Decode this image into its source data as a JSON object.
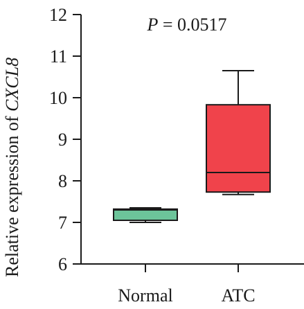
{
  "chart_data": {
    "type": "box",
    "title": "",
    "xlabel": "",
    "ylabel": {
      "prefix": "Relative expression of ",
      "gene": "CXCL8"
    },
    "ylim": [
      6,
      12
    ],
    "yticks": [
      "6",
      "7",
      "8",
      "9",
      "10",
      "11",
      "12"
    ],
    "categories": [
      "Normal",
      "ATC"
    ],
    "annotation": {
      "p_symbol": "P",
      "p_rest": " = 0.0517"
    },
    "boxes": [
      {
        "category": "Normal",
        "min": 7.0,
        "q1": 7.05,
        "median": 7.3,
        "q3": 7.32,
        "max": 7.35,
        "color": "#6cc49a"
      },
      {
        "category": "ATC",
        "min": 7.67,
        "q1": 7.73,
        "median": 8.2,
        "q3": 9.83,
        "max": 10.65,
        "color": "#f0434b"
      }
    ],
    "grid": false,
    "legend": "none"
  }
}
